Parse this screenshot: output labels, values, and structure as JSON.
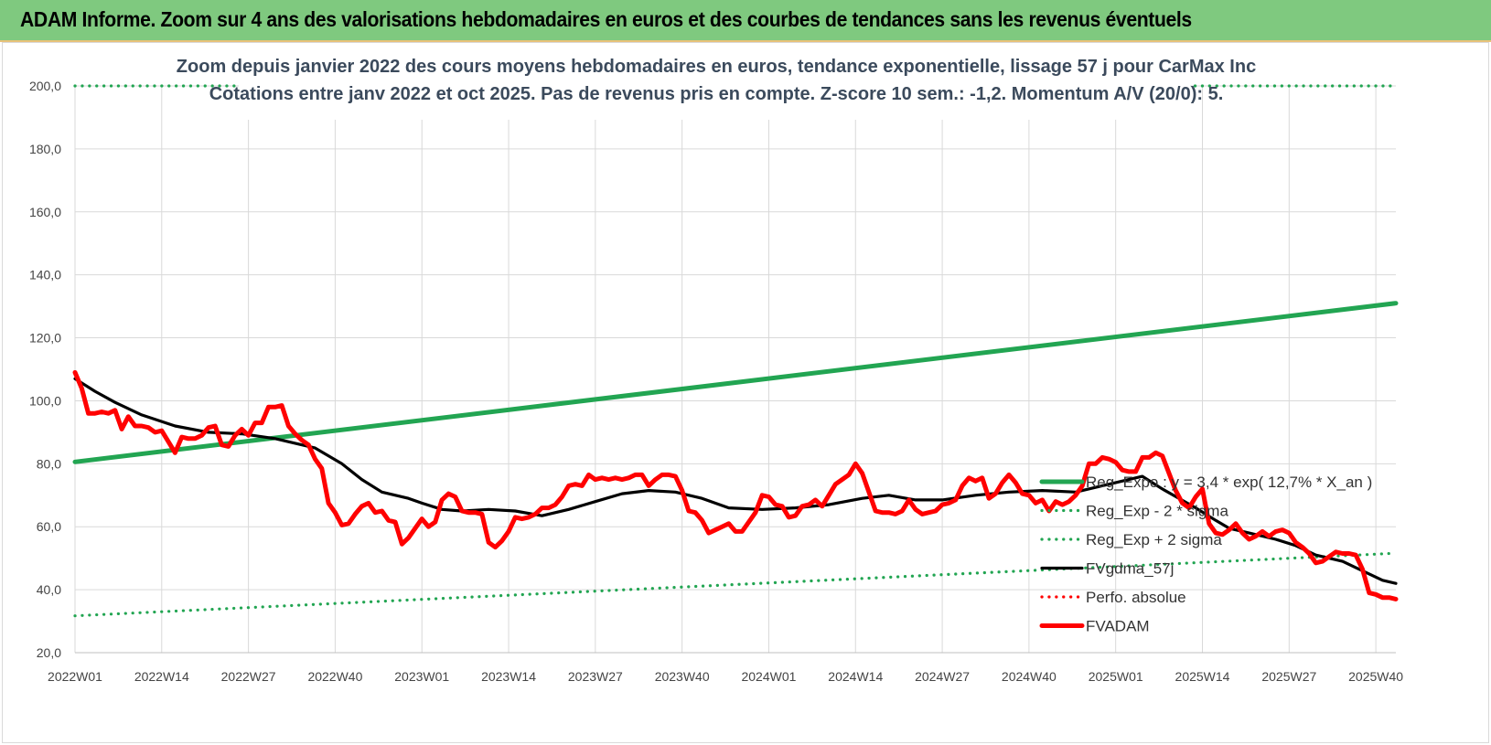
{
  "banner": {
    "title": "ADAM Informe. Zoom sur 4 ans des valorisations hebdomadaires en euros et des courbes de tendances sans les revenus éventuels"
  },
  "chart_data": {
    "type": "line",
    "title": "Zoom depuis janvier 2022 des cours moyens hebdomadaires en euros, tendance exponentielle, lissage 57 j pour CarMax Inc",
    "subtitle": "Cotations entre janv 2022 et oct 2025. Pas de revenus pris en compte. Z-score 10 sem.: -1,2. Momentum A/V (20/0): 5.",
    "xlabel": "",
    "ylabel": "",
    "ylim": [
      20,
      200
    ],
    "y_ticks": [
      "20,0",
      "40,0",
      "60,0",
      "80,0",
      "100,0",
      "120,0",
      "140,0",
      "160,0",
      "180,0",
      "200,0"
    ],
    "x_ticks": [
      "2022W01",
      "2022W14",
      "2022W27",
      "2022W40",
      "2023W01",
      "2023W14",
      "2023W27",
      "2023W40",
      "2024W01",
      "2024W14",
      "2024W27",
      "2024W40",
      "2025W01",
      "2025W14",
      "2025W27",
      "2025W40"
    ],
    "weeks_total": 199,
    "grid": true,
    "legend_position": "right",
    "series": [
      {
        "name": "Reg_Expo : y = 3,4 * exp( 12,7% * X_an )",
        "style": "solid",
        "color": "#22a552",
        "x": [
          0,
          198
        ],
        "values": [
          80.6,
          131.0
        ]
      },
      {
        "name": "Reg_Exp - 2 * sigma",
        "style": "dotted",
        "color": "#22a552",
        "x": [
          0,
          198
        ],
        "values": [
          31.7,
          51.6
        ]
      },
      {
        "name": "Reg_Exp + 2 sigma",
        "style": "dotted",
        "color": "#22a552",
        "x": [
          0,
          198
        ],
        "values": [
          200.0,
          200.0
        ]
      },
      {
        "name": "FVgdma_57j",
        "style": "solid",
        "color": "#000000",
        "x": [
          0,
          3,
          6,
          10,
          15,
          20,
          25,
          30,
          36,
          40,
          43,
          46,
          50,
          52,
          55,
          58,
          62,
          66,
          70,
          74,
          78,
          82,
          86,
          90,
          94,
          98,
          103,
          108,
          113,
          118,
          122,
          126,
          130,
          135,
          140,
          145,
          150,
          155,
          160,
          163,
          168,
          171,
          173,
          176,
          180,
          183,
          186,
          190,
          193,
          196,
          198
        ],
        "values": [
          107,
          103,
          99.5,
          95.5,
          92,
          90,
          89.5,
          88,
          85,
          80,
          75,
          71,
          69,
          67.5,
          65.5,
          65,
          65.5,
          65,
          63.5,
          65.5,
          68,
          70.5,
          71.5,
          71,
          69,
          66,
          65.5,
          66,
          67,
          69,
          70,
          68.5,
          68.5,
          70,
          71,
          71.5,
          71,
          73.5,
          76,
          72,
          66,
          62,
          59.5,
          58,
          56,
          54,
          51,
          49,
          46,
          43,
          42
        ]
      },
      {
        "name": "Perfo. absolue",
        "style": "dotted",
        "color": "#ff0000",
        "x": [],
        "values": []
      },
      {
        "name": "FVADAM",
        "style": "solid-thick",
        "color": "#ff0000",
        "x": [
          0,
          1,
          2,
          3,
          4,
          5,
          6,
          7,
          8,
          9,
          10,
          11,
          12,
          13,
          14,
          15,
          16,
          17,
          18,
          19,
          20,
          21,
          22,
          23,
          24,
          25,
          26,
          27,
          28,
          29,
          30,
          31,
          32,
          33,
          34,
          35,
          36,
          37,
          38,
          39,
          40,
          41,
          42,
          43,
          44,
          45,
          46,
          47,
          48,
          49,
          50,
          51,
          52,
          53,
          54,
          55,
          56,
          57,
          58,
          59,
          60,
          61,
          62,
          63,
          64,
          65,
          66,
          67,
          68,
          69,
          70,
          71,
          72,
          73,
          74,
          75,
          76,
          77,
          78,
          79,
          80,
          81,
          82,
          83,
          84,
          85,
          86,
          87,
          88,
          89,
          90,
          91,
          92,
          93,
          94,
          95,
          96,
          97,
          98,
          99,
          100,
          101,
          102,
          103,
          104,
          105,
          106,
          107,
          108,
          109,
          110,
          111,
          112,
          113,
          114,
          115,
          116,
          117,
          118,
          119,
          120,
          121,
          122,
          123,
          124,
          125,
          126,
          127,
          128,
          129,
          130,
          131,
          132,
          133,
          134,
          135,
          136,
          137,
          138,
          139,
          140,
          141,
          142,
          143,
          144,
          145,
          146,
          147,
          148,
          149,
          150,
          151,
          152,
          153,
          154,
          155,
          156,
          157,
          158,
          159,
          160,
          161,
          162,
          163,
          164,
          165,
          166,
          167,
          168,
          169,
          170,
          171,
          172,
          173,
          174,
          175,
          176,
          177,
          178,
          179,
          180,
          181,
          182,
          183,
          184,
          185,
          186,
          187,
          188,
          189,
          190,
          191,
          192,
          193,
          194,
          195,
          196,
          197,
          198
        ],
        "values": [
          109,
          104,
          96,
          96,
          96.5,
          96,
          97,
          91,
          95,
          92,
          92,
          91.5,
          90,
          90.5,
          87,
          83.5,
          88.5,
          88,
          88,
          89,
          91.5,
          92,
          86,
          85.5,
          89,
          91,
          89,
          93,
          93,
          98,
          98,
          98.5,
          92,
          89.5,
          87.5,
          86,
          81.5,
          78.5,
          67.5,
          64.5,
          60.5,
          61,
          64,
          66.5,
          67.5,
          64.5,
          65,
          62,
          61.5,
          54.5,
          56.5,
          59.5,
          62.5,
          60,
          61.5,
          68.5,
          70.5,
          69.5,
          65,
          64.5,
          64.5,
          64,
          55,
          53.5,
          55.5,
          58.5,
          63,
          62.5,
          63,
          64,
          66,
          66,
          67,
          69.5,
          73,
          73.5,
          73,
          76.5,
          75,
          75.5,
          75,
          75.5,
          75,
          75.5,
          76.5,
          76.5,
          73,
          75,
          76.5,
          76.5,
          76,
          71.5,
          65,
          64.5,
          62,
          58,
          59,
          60,
          61,
          58.5,
          58.5,
          61.5,
          64.5,
          70,
          69.5,
          67,
          66.5,
          63,
          63.5,
          66.5,
          67,
          68.5,
          66.5,
          70,
          73.5,
          75,
          76.5,
          80,
          77,
          71,
          65,
          64.5,
          64.5,
          64,
          65,
          68.5,
          65.5,
          64,
          64.5,
          65,
          67,
          67.5,
          68.5,
          73,
          75.5,
          74.5,
          75.5,
          69,
          70.5,
          74,
          76.5,
          74,
          70.5,
          70,
          67.5,
          68.5,
          65,
          68,
          67,
          68,
          70,
          73,
          80,
          80,
          82,
          81.5,
          80.5,
          78,
          77.5,
          77.5,
          82,
          82,
          83.5,
          82.5,
          77,
          71.5,
          67.5,
          66,
          69.5,
          72,
          61,
          58,
          57.5,
          59,
          61,
          58,
          56,
          57,
          58.5,
          57,
          58.5,
          59,
          58,
          55,
          53.5,
          51.5,
          48.5,
          49,
          50.5,
          52,
          51.5,
          51.5,
          51,
          46.5,
          39,
          38.5,
          37.5,
          37.5,
          37
        ]
      }
    ]
  }
}
